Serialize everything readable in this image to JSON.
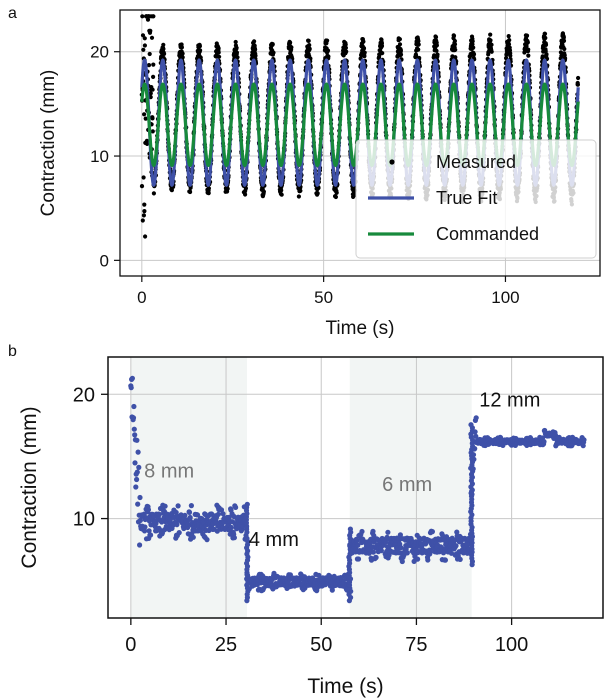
{
  "panel_labels": [
    "a",
    "b"
  ],
  "chart_data": [
    {
      "type": "line",
      "panel": "a",
      "xlabel": "Time (s)",
      "ylabel": "Contraction (mm)",
      "xlim": [
        -6,
        126
      ],
      "ylim": [
        -1.5,
        24
      ],
      "xticks": [
        0,
        50,
        100
      ],
      "yticks": [
        0,
        10,
        20
      ],
      "grid": true,
      "legend_position": "bottom-right",
      "series": [
        {
          "name": "Measured",
          "style": "points",
          "color": "#000000",
          "offset": 13.6,
          "amp_start": 6.5,
          "amp_end": 7.6,
          "period": 5.0,
          "phase": 0.6
        },
        {
          "name": "True Fit",
          "style": "line",
          "color": "#3f51a8",
          "offset": 13.2,
          "amplitude": 6.0,
          "period": 5.0,
          "phase": 0.6
        },
        {
          "name": "Commanded",
          "style": "line",
          "color": "#178a3c",
          "offset": 13.0,
          "amplitude": 3.9,
          "period": 5.0,
          "phase": 0.6
        }
      ],
      "x_range": [
        0,
        120
      ]
    },
    {
      "type": "line",
      "panel": "b",
      "xlabel": "Time (s)",
      "ylabel": "Contraction (mm)",
      "xlim": [
        -6,
        124
      ],
      "ylim": [
        2,
        23
      ],
      "xticks": [
        0,
        25,
        50,
        75,
        100
      ],
      "yticks": [
        10,
        20
      ],
      "grid": true,
      "series_color": "#3f51a8",
      "segments": [
        {
          "x": [
            0,
            30.5
          ],
          "level": 9.7,
          "noise": 1.0,
          "label": "8 mm",
          "shaded": true
        },
        {
          "x": [
            30.5,
            57.5
          ],
          "level": 4.9,
          "noise": 0.5,
          "label": "4 mm",
          "shaded": false
        },
        {
          "x": [
            57.5,
            89.5
          ],
          "level": 7.8,
          "noise": 0.9,
          "label": "6 mm",
          "shaded": true
        },
        {
          "x": [
            89.5,
            119
          ],
          "level": 16.2,
          "noise": 0.25,
          "label": "12 mm",
          "shaded": false
        }
      ],
      "peak_start": 21.6
    }
  ]
}
